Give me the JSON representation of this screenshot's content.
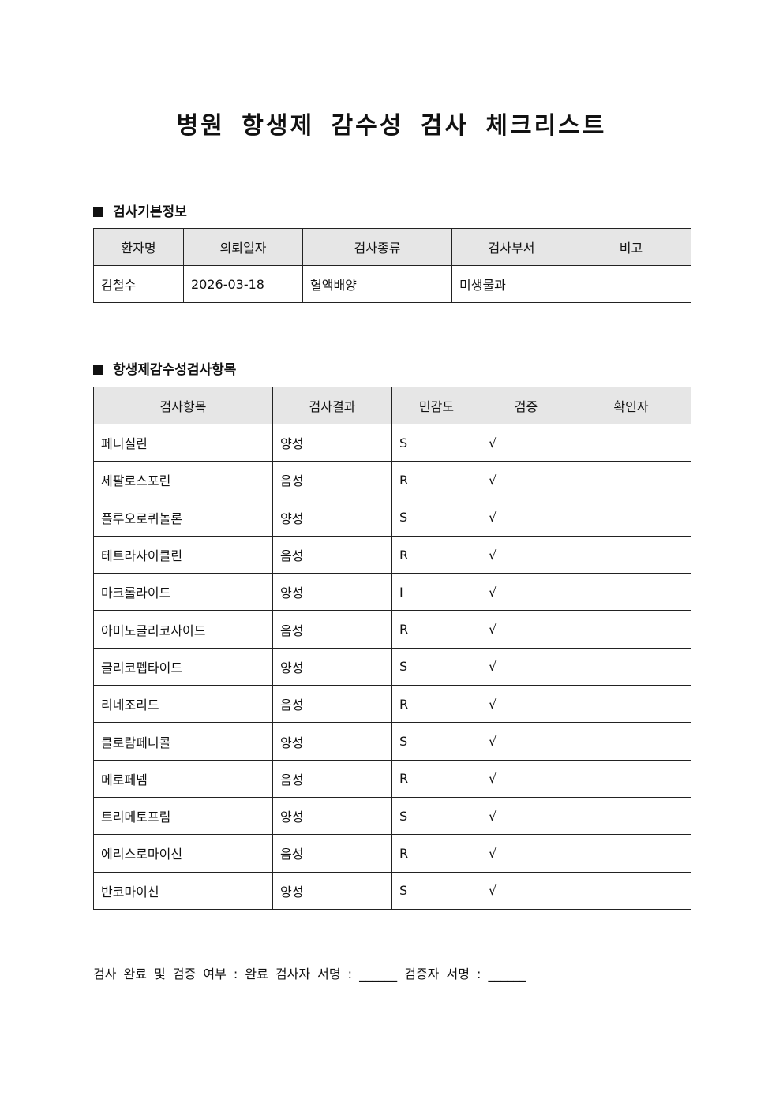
{
  "title": "병원 항생제 감수성 검사 체크리스트",
  "basic_info": {
    "heading": "검사기본정보",
    "columns": [
      "환자명",
      "의뢰일자",
      "검사종류",
      "검사부서",
      "비고"
    ],
    "row": [
      "김철수",
      "2026-03-18",
      "혈액배양",
      "미생물과",
      ""
    ]
  },
  "susceptibility": {
    "heading": "항생제감수성검사항목",
    "columns": [
      "검사항목",
      "검사결과",
      "민감도",
      "검증",
      "확인자"
    ],
    "rows": [
      [
        "페니실린",
        "양성",
        "S",
        "√",
        ""
      ],
      [
        "세팔로스포린",
        "음성",
        "R",
        "√",
        ""
      ],
      [
        "플루오로퀴놀론",
        "양성",
        "S",
        "√",
        ""
      ],
      [
        "테트라사이클린",
        "음성",
        "R",
        "√",
        ""
      ],
      [
        "마크롤라이드",
        "양성",
        "I",
        "√",
        ""
      ],
      [
        "아미노글리코사이드",
        "음성",
        "R",
        "√",
        ""
      ],
      [
        "글리코펩타이드",
        "양성",
        "S",
        "√",
        ""
      ],
      [
        "리네조리드",
        "음성",
        "R",
        "√",
        ""
      ],
      [
        "클로람페니콜",
        "양성",
        "S",
        "√",
        ""
      ],
      [
        "메로페넴",
        "음성",
        "R",
        "√",
        ""
      ],
      [
        "트리메토프림",
        "양성",
        "S",
        "√",
        ""
      ],
      [
        "에리스로마이신",
        "음성",
        "R",
        "√",
        ""
      ],
      [
        "반코마이신",
        "양성",
        "S",
        "√",
        ""
      ]
    ]
  },
  "footer": "검사 완료 및 검증 여부 : 완료 검사자 서명 : ______ 검증자 서명 : ______"
}
